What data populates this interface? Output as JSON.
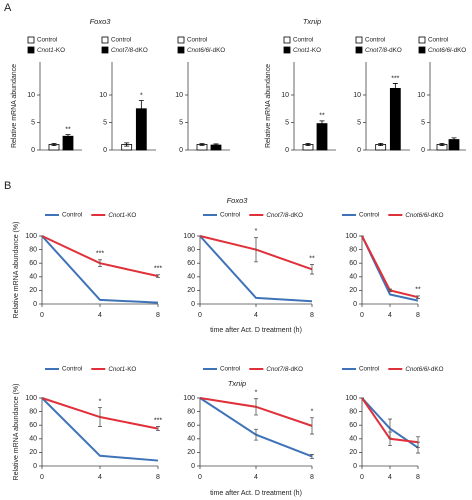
{
  "panel_labels": [
    "A",
    "B"
  ],
  "chart_data": [
    {
      "type": "bar",
      "title": "Foxo3",
      "ylabel": "Relative mRNA abundance",
      "ylim": [
        0,
        16
      ],
      "yticks": [
        0,
        5,
        10
      ],
      "series": [
        {
          "name": "Control",
          "color": "#ffffff",
          "values": [
            1.0
          ],
          "errors": [
            0.2
          ]
        },
        {
          "name": "Cnot1-KO",
          "color": "#000000",
          "values": [
            2.5
          ],
          "errors": [
            0.3
          ],
          "significance": [
            "**"
          ]
        }
      ]
    },
    {
      "type": "bar",
      "ylim": [
        0,
        16
      ],
      "yticks": [
        0,
        5,
        10
      ],
      "series": [
        {
          "name": "Control",
          "color": "#ffffff",
          "values": [
            1.0
          ],
          "errors": [
            0.3
          ]
        },
        {
          "name": "Cnot7/8-dKO",
          "color": "#000000",
          "values": [
            7.5
          ],
          "errors": [
            1.5
          ],
          "significance": [
            "*"
          ]
        }
      ]
    },
    {
      "type": "bar",
      "ylim": [
        0,
        16
      ],
      "yticks": [
        0,
        5,
        10
      ],
      "series": [
        {
          "name": "Control",
          "color": "#ffffff",
          "values": [
            1.0
          ],
          "errors": [
            0.15
          ]
        },
        {
          "name": "Cnot6/6l-dKO",
          "color": "#000000",
          "values": [
            0.9
          ],
          "errors": [
            0.2
          ]
        }
      ]
    },
    {
      "type": "bar",
      "title": "Txnip",
      "ylabel": "Relative mRNA abundance",
      "ylim": [
        0,
        16
      ],
      "yticks": [
        0,
        5,
        10
      ],
      "series": [
        {
          "name": "Control",
          "color": "#ffffff",
          "values": [
            1.0
          ],
          "errors": [
            0.2
          ]
        },
        {
          "name": "Cnot1-KO",
          "color": "#000000",
          "values": [
            4.8
          ],
          "errors": [
            0.5
          ],
          "significance": [
            "**"
          ]
        }
      ]
    },
    {
      "type": "bar",
      "ylim": [
        0,
        16
      ],
      "yticks": [
        0,
        5,
        10
      ],
      "series": [
        {
          "name": "Control",
          "color": "#ffffff",
          "values": [
            1.0
          ],
          "errors": [
            0.2
          ]
        },
        {
          "name": "Cnot7/8-dKO",
          "color": "#000000",
          "values": [
            11.2
          ],
          "errors": [
            0.9
          ],
          "significance": [
            "***"
          ]
        }
      ]
    },
    {
      "type": "bar",
      "ylim": [
        0,
        16
      ],
      "yticks": [
        0,
        5,
        10
      ],
      "series": [
        {
          "name": "Control",
          "color": "#ffffff",
          "values": [
            1.0
          ],
          "errors": [
            0.2
          ]
        },
        {
          "name": "Cnot6/6l-dKO",
          "color": "#000000",
          "values": [
            1.9
          ],
          "errors": [
            0.3
          ]
        }
      ]
    },
    {
      "type": "line",
      "ylabel": "Relative mRNA abundance (%)",
      "x": [
        0,
        4,
        8
      ],
      "xlim": [
        0,
        8
      ],
      "xticks": [
        0,
        4,
        8
      ],
      "ylim": [
        0,
        100
      ],
      "yticks": [
        0,
        20,
        40,
        60,
        80,
        100
      ],
      "series": [
        {
          "name": "Control",
          "color": "#3f73b8",
          "values": [
            100,
            6,
            2
          ]
        },
        {
          "name": "Cnot1-KO",
          "color": "#e0303a",
          "values": [
            100,
            60,
            41
          ],
          "errors": [
            0,
            5,
            2
          ],
          "significance": [
            null,
            "***",
            "***"
          ]
        }
      ]
    },
    {
      "type": "line",
      "title": "Foxo3",
      "xlabel": "time after Act. D treatment (h)",
      "x": [
        0,
        4,
        8
      ],
      "xlim": [
        0,
        8
      ],
      "xticks": [
        0,
        4,
        8
      ],
      "ylim": [
        0,
        100
      ],
      "yticks": [
        0,
        20,
        40,
        60,
        80,
        100
      ],
      "series": [
        {
          "name": "Control",
          "color": "#3f73b8",
          "values": [
            100,
            9,
            4
          ]
        },
        {
          "name": "Cnot7/8-dKO",
          "color": "#e0303a",
          "values": [
            100,
            80,
            51
          ],
          "errors": [
            0,
            18,
            7
          ],
          "significance": [
            null,
            "*",
            "**"
          ]
        }
      ]
    },
    {
      "type": "line",
      "x": [
        0,
        4,
        8
      ],
      "xlim": [
        0,
        8
      ],
      "xticks": [
        0,
        4,
        8
      ],
      "ylim": [
        0,
        100
      ],
      "yticks": [
        0,
        20,
        40,
        60,
        80,
        100
      ],
      "series": [
        {
          "name": "Control",
          "color": "#3f73b8",
          "values": [
            100,
            14,
            5
          ]
        },
        {
          "name": "Cnot6/6l-dKO",
          "color": "#e0303a",
          "values": [
            100,
            20,
            10
          ],
          "errors": [
            0,
            2,
            2
          ],
          "significance": [
            null,
            null,
            "**"
          ]
        }
      ]
    },
    {
      "type": "line",
      "ylabel": "Relative mRNA abundance (%)",
      "x": [
        0,
        4,
        8
      ],
      "xlim": [
        0,
        8
      ],
      "xticks": [
        0,
        4,
        8
      ],
      "ylim": [
        0,
        100
      ],
      "yticks": [
        0,
        20,
        40,
        60,
        80,
        100
      ],
      "series": [
        {
          "name": "Control",
          "color": "#3f73b8",
          "values": [
            100,
            15,
            8
          ]
        },
        {
          "name": "Cnot1-KO",
          "color": "#e0303a",
          "values": [
            100,
            72,
            55
          ],
          "errors": [
            0,
            14,
            3
          ],
          "significance": [
            null,
            "*",
            "***"
          ]
        }
      ]
    },
    {
      "type": "line",
      "title": "Txnip",
      "xlabel": "time after Act. D treatment (h)",
      "x": [
        0,
        4,
        8
      ],
      "xlim": [
        0,
        8
      ],
      "xticks": [
        0,
        4,
        8
      ],
      "ylim": [
        0,
        100
      ],
      "yticks": [
        0,
        20,
        40,
        60,
        80,
        100
      ],
      "series": [
        {
          "name": "Control",
          "color": "#3f73b8",
          "values": [
            100,
            46,
            14
          ],
          "errors": [
            0,
            8,
            3
          ]
        },
        {
          "name": "Cnot7/8-dKO",
          "color": "#e0303a",
          "values": [
            100,
            87,
            59
          ],
          "errors": [
            0,
            12,
            12
          ],
          "significance": [
            null,
            "*",
            "*"
          ]
        }
      ]
    },
    {
      "type": "line",
      "x": [
        0,
        4,
        8
      ],
      "xlim": [
        0,
        8
      ],
      "xticks": [
        0,
        4,
        8
      ],
      "ylim": [
        0,
        100
      ],
      "yticks": [
        0,
        20,
        40,
        60,
        80,
        100
      ],
      "series": [
        {
          "name": "Control",
          "color": "#3f73b8",
          "values": [
            100,
            55,
            27
          ],
          "errors": [
            0,
            14,
            8
          ]
        },
        {
          "name": "Cnot6/6l-dKO",
          "color": "#e0303a",
          "values": [
            100,
            40,
            35
          ],
          "errors": [
            0,
            10,
            8
          ]
        }
      ]
    }
  ]
}
